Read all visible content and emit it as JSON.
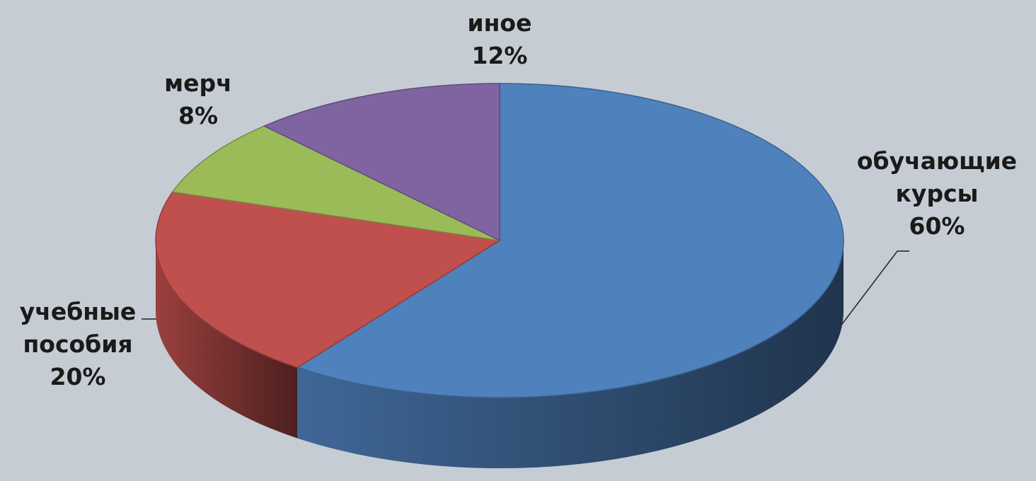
{
  "chart_data": {
    "type": "pie",
    "categories": [
      "обучающие курсы",
      "учебные пособия",
      "мерч",
      "иное"
    ],
    "values": [
      60,
      20,
      8,
      12
    ],
    "value_labels": [
      "60%",
      "20%",
      "8%",
      "12%"
    ],
    "colors": [
      "#4f81bd",
      "#c0504d",
      "#9bbb59",
      "#8064a2"
    ]
  }
}
